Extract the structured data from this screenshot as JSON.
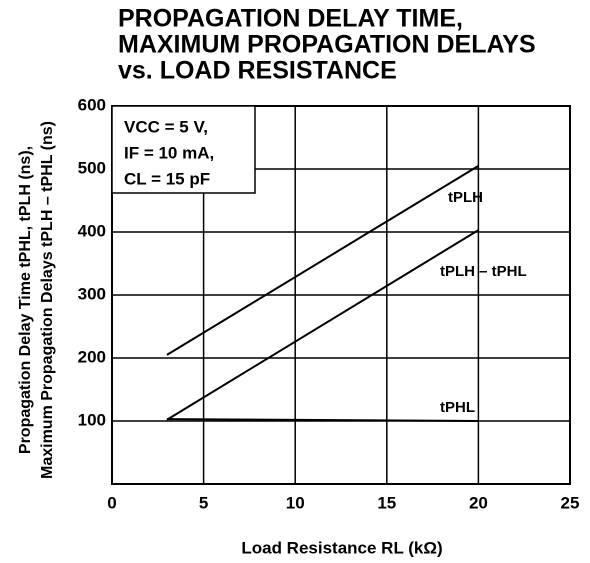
{
  "chart_data": {
    "type": "line",
    "title": [
      "PROPAGATION DELAY TIME,",
      "MAXIMUM PROPAGATION DELAYS",
      "vs. LOAD RESISTANCE"
    ],
    "x_label": "Load Resistance  RL (kΩ)",
    "y_label": [
      "Propagation Delay Time  tPHL, tPLH (ns),",
      "Maximum Propagation Delays  tPLH – tPHL (ns)"
    ],
    "annotation": [
      "VCC = 5 V,",
      "IF = 10 mA,",
      "CL = 15 pF"
    ],
    "x": [
      3,
      20
    ],
    "series": [
      {
        "name": "tPLH",
        "color": "#000000",
        "values": [
          205,
          505
        ]
      },
      {
        "name": "tPLH – tPHL",
        "color": "#000000",
        "values": [
          102,
          403
        ]
      },
      {
        "name": "tPHL",
        "color": "#000000",
        "values": [
          103,
          100
        ]
      }
    ],
    "xlim": [
      0,
      25
    ],
    "xticks": [
      0,
      5,
      10,
      15,
      20,
      25
    ],
    "ylim": [
      0,
      600
    ],
    "yticks": [
      100,
      200,
      300,
      400,
      500,
      600
    ],
    "grid": true
  }
}
